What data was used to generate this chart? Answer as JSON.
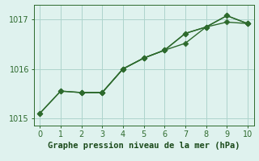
{
  "line1_x": [
    0,
    1,
    2,
    3,
    4,
    5,
    6,
    7,
    8,
    9,
    10
  ],
  "line1_y": [
    1015.1,
    1015.55,
    1015.52,
    1015.52,
    1016.0,
    1016.22,
    1016.38,
    1016.52,
    1016.85,
    1016.95,
    1016.92
  ],
  "line2_x": [
    0,
    1,
    2,
    3,
    4,
    5,
    6,
    7,
    8,
    9,
    10
  ],
  "line2_y": [
    1015.1,
    1015.55,
    1015.52,
    1015.52,
    1016.0,
    1016.22,
    1016.38,
    1016.72,
    1016.85,
    1017.08,
    1016.92
  ],
  "line3_x": [
    2,
    3,
    4,
    5,
    6,
    7,
    8,
    9,
    10
  ],
  "line3_y": [
    1015.52,
    1015.52,
    1016.0,
    1016.22,
    1016.38,
    1016.72,
    1016.85,
    1017.08,
    1016.92
  ],
  "line_color": "#2d6a2d",
  "bg_color": "#dff2ee",
  "grid_color": "#aed4cc",
  "xlabel": "Graphe pression niveau de la mer (hPa)",
  "ylim": [
    1014.85,
    1017.3
  ],
  "xlim": [
    -0.3,
    10.3
  ],
  "yticks": [
    1015,
    1016,
    1017
  ],
  "xticks": [
    0,
    1,
    2,
    3,
    4,
    5,
    6,
    7,
    8,
    9,
    10
  ],
  "xlabel_color": "#1a4a1a",
  "xlabel_fontsize": 7.5,
  "tick_fontsize": 7,
  "marker_size": 3.5,
  "line_width": 1.0
}
